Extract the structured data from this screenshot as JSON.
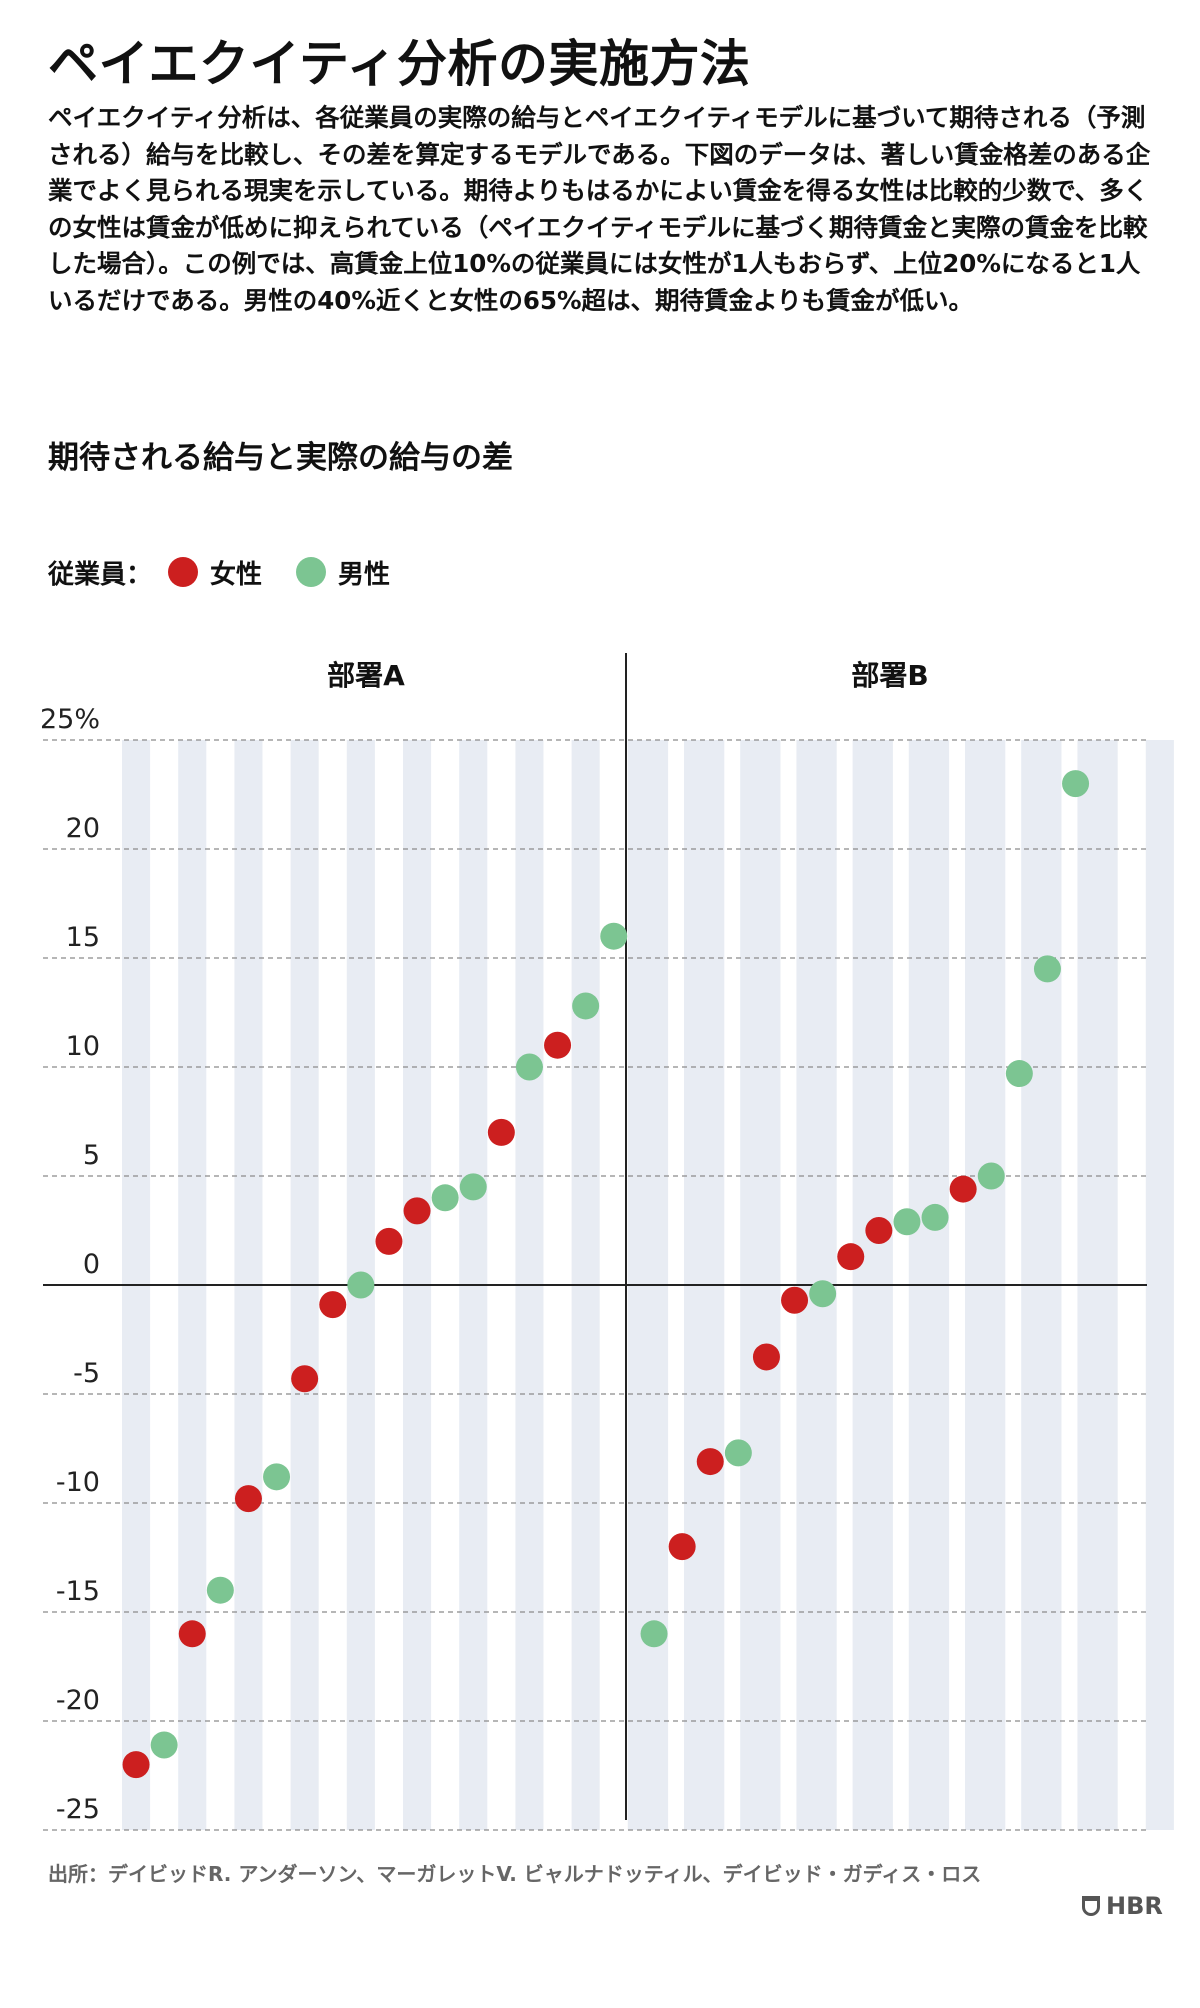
{
  "header": {
    "title": "ペイエクイティ分析の実施方法",
    "description": "ペイエクイティ分析は、各従業員の実際の給与とペイエクイティモデルに基づいて期待される（予測される）給与を比較し、その差を算定するモデルである。下図のデータは、著しい賃金格差のある企業でよく見られる現実を示している。期待よりもはるかによい賃金を得る女性は比較的少数で、多くの女性は賃金が低めに抑えられている（ペイエクイティモデルに基づく期待賃金と実際の賃金を比較した場合）。この例では、高賃金上位10%の従業員には女性が1人もおらず、上位20%になると1人いるだけである。男性の40%近くと女性の65%超は、期待賃金よりも賃金が低い。"
  },
  "legend": {
    "label": "従業員：",
    "items": [
      {
        "name": "女性",
        "color": "#cc1f1f"
      },
      {
        "name": "男性",
        "color": "#7cc592"
      }
    ]
  },
  "source": "出所：デイビッドR. アンダーソン、マーガレットV. ビャルナドッティル、デイビッド・ガディス・ロス",
  "logo": {
    "text": "HBR",
    "icon": "hbr-shield-icon"
  },
  "colors": {
    "female": "#cc1f1f",
    "male": "#7cc592",
    "stripe": "#e8ecf3",
    "grid": "#8a8a8a",
    "axis": "#222222"
  },
  "chart_data": {
    "type": "scatter",
    "title": "期待される給与と実際の給与の差",
    "ylabel": "",
    "ylim": [
      -25,
      25
    ],
    "y_ticks": [
      25,
      20,
      15,
      10,
      5,
      0,
      -5,
      -10,
      -15,
      -20,
      -25
    ],
    "y_tick_labels": [
      "25%",
      "20",
      "15",
      "10",
      "5",
      "0",
      "-5",
      "-10",
      "-15",
      "-20",
      "-25"
    ],
    "grid": "dashed horizontal",
    "legend_position": "top-left",
    "panels": [
      {
        "name": "部署A",
        "points": [
          {
            "rank": 1,
            "gender": "female",
            "value": -22.0
          },
          {
            "rank": 2,
            "gender": "male",
            "value": -21.1
          },
          {
            "rank": 3,
            "gender": "female",
            "value": -16.0
          },
          {
            "rank": 4,
            "gender": "male",
            "value": -14.0
          },
          {
            "rank": 5,
            "gender": "female",
            "value": -9.8
          },
          {
            "rank": 6,
            "gender": "male",
            "value": -8.8
          },
          {
            "rank": 7,
            "gender": "female",
            "value": -4.3
          },
          {
            "rank": 8,
            "gender": "female",
            "value": -0.9
          },
          {
            "rank": 9,
            "gender": "male",
            "value": 0.0
          },
          {
            "rank": 10,
            "gender": "female",
            "value": 2.0
          },
          {
            "rank": 11,
            "gender": "female",
            "value": 3.4
          },
          {
            "rank": 12,
            "gender": "male",
            "value": 4.0
          },
          {
            "rank": 13,
            "gender": "male",
            "value": 4.5
          },
          {
            "rank": 14,
            "gender": "female",
            "value": 7.0
          },
          {
            "rank": 15,
            "gender": "male",
            "value": 10.0
          },
          {
            "rank": 16,
            "gender": "female",
            "value": 11.0
          },
          {
            "rank": 17,
            "gender": "male",
            "value": 12.8
          },
          {
            "rank": 18,
            "gender": "male",
            "value": 16.0
          }
        ]
      },
      {
        "name": "部署B",
        "points": [
          {
            "rank": 1,
            "gender": "male",
            "value": -16.0
          },
          {
            "rank": 2,
            "gender": "female",
            "value": -12.0
          },
          {
            "rank": 3,
            "gender": "female",
            "value": -8.1
          },
          {
            "rank": 4,
            "gender": "male",
            "value": -7.7
          },
          {
            "rank": 5,
            "gender": "female",
            "value": -3.3
          },
          {
            "rank": 6,
            "gender": "female",
            "value": -0.7
          },
          {
            "rank": 7,
            "gender": "male",
            "value": -0.4
          },
          {
            "rank": 8,
            "gender": "female",
            "value": 1.3
          },
          {
            "rank": 9,
            "gender": "female",
            "value": 2.5
          },
          {
            "rank": 10,
            "gender": "male",
            "value": 2.9
          },
          {
            "rank": 11,
            "gender": "male",
            "value": 3.1
          },
          {
            "rank": 12,
            "gender": "female",
            "value": 4.4
          },
          {
            "rank": 13,
            "gender": "male",
            "value": 5.0
          },
          {
            "rank": 14,
            "gender": "male",
            "value": 9.7
          },
          {
            "rank": 15,
            "gender": "male",
            "value": 14.5
          },
          {
            "rank": 16,
            "gender": "male",
            "value": 23.0
          }
        ]
      }
    ]
  }
}
